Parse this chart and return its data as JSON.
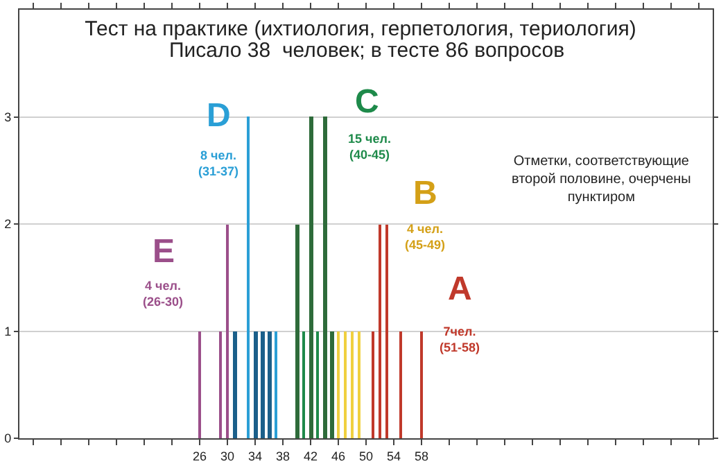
{
  "chart_data": {
    "type": "bar",
    "title": "Тест на практике (ихтиология, герпетология, териология)",
    "subtitle": "Писало 38  человек; в тесте 86 вопросов",
    "xlim": [
      0,
      100
    ],
    "ylim": [
      0,
      4
    ],
    "xticks": [
      {
        "value": 2,
        "label": null
      },
      {
        "value": 6,
        "label": null
      },
      {
        "value": 10,
        "label": null
      },
      {
        "value": 14,
        "label": null
      },
      {
        "value": 18,
        "label": null
      },
      {
        "value": 22,
        "label": null
      },
      26,
      30,
      34,
      38,
      42,
      46,
      50,
      54,
      58,
      {
        "value": 62,
        "label": null
      },
      {
        "value": 66,
        "label": null
      },
      {
        "value": 70,
        "label": null
      },
      {
        "value": 74,
        "label": null
      },
      {
        "value": 78,
        "label": null
      },
      {
        "value": 82,
        "label": null
      },
      {
        "value": 86,
        "label": null
      },
      {
        "value": 90,
        "label": null
      },
      {
        "value": 94,
        "label": null
      },
      {
        "value": 98,
        "label": null
      }
    ],
    "yticks": [
      0,
      1,
      2,
      3
    ],
    "grid": "y",
    "series": [
      {
        "color": "#9b4f8a",
        "x": [
          26,
          29,
          30
        ],
        "values": [
          1,
          1,
          2
        ],
        "line_style": "solid"
      },
      {
        "color": "#2a9fd6",
        "x": [
          33,
          37
        ],
        "values": [
          3,
          1
        ],
        "line_style": "solid"
      },
      {
        "color": "#1b5f8a",
        "x": [
          31,
          34,
          35,
          36
        ],
        "values": [
          1,
          1,
          1,
          1
        ],
        "line_style": "dashed"
      },
      {
        "color": "#1e8a4a",
        "x": [
          41,
          43
        ],
        "values": [
          1,
          1
        ],
        "line_style": "solid"
      },
      {
        "color": "#2e6b3a",
        "x": [
          40,
          42,
          44,
          45
        ],
        "values": [
          2,
          3,
          3,
          1
        ],
        "line_style": "dashed"
      },
      {
        "color": "#f0d040",
        "x": [
          46,
          47,
          48,
          49
        ],
        "values": [
          1,
          1,
          1,
          1
        ],
        "line_style": "solid"
      },
      {
        "color": "#c0392b",
        "x": [
          51,
          52,
          53,
          55,
          58
        ],
        "values": [
          1,
          2,
          2,
          1,
          1
        ],
        "line_style": "solid"
      }
    ],
    "annotations": [
      "E",
      "4 чел.\n(26-30)",
      "D",
      "8 чел.\n(31-37)",
      "C",
      "15 чел.\n(40-45)",
      "B",
      "4 чел.\n(45-49)",
      "A",
      "7чел.\n(51-58)",
      "Отметки, соответствующие\nвторой половине, очерчены\nпунктиром"
    ]
  }
}
